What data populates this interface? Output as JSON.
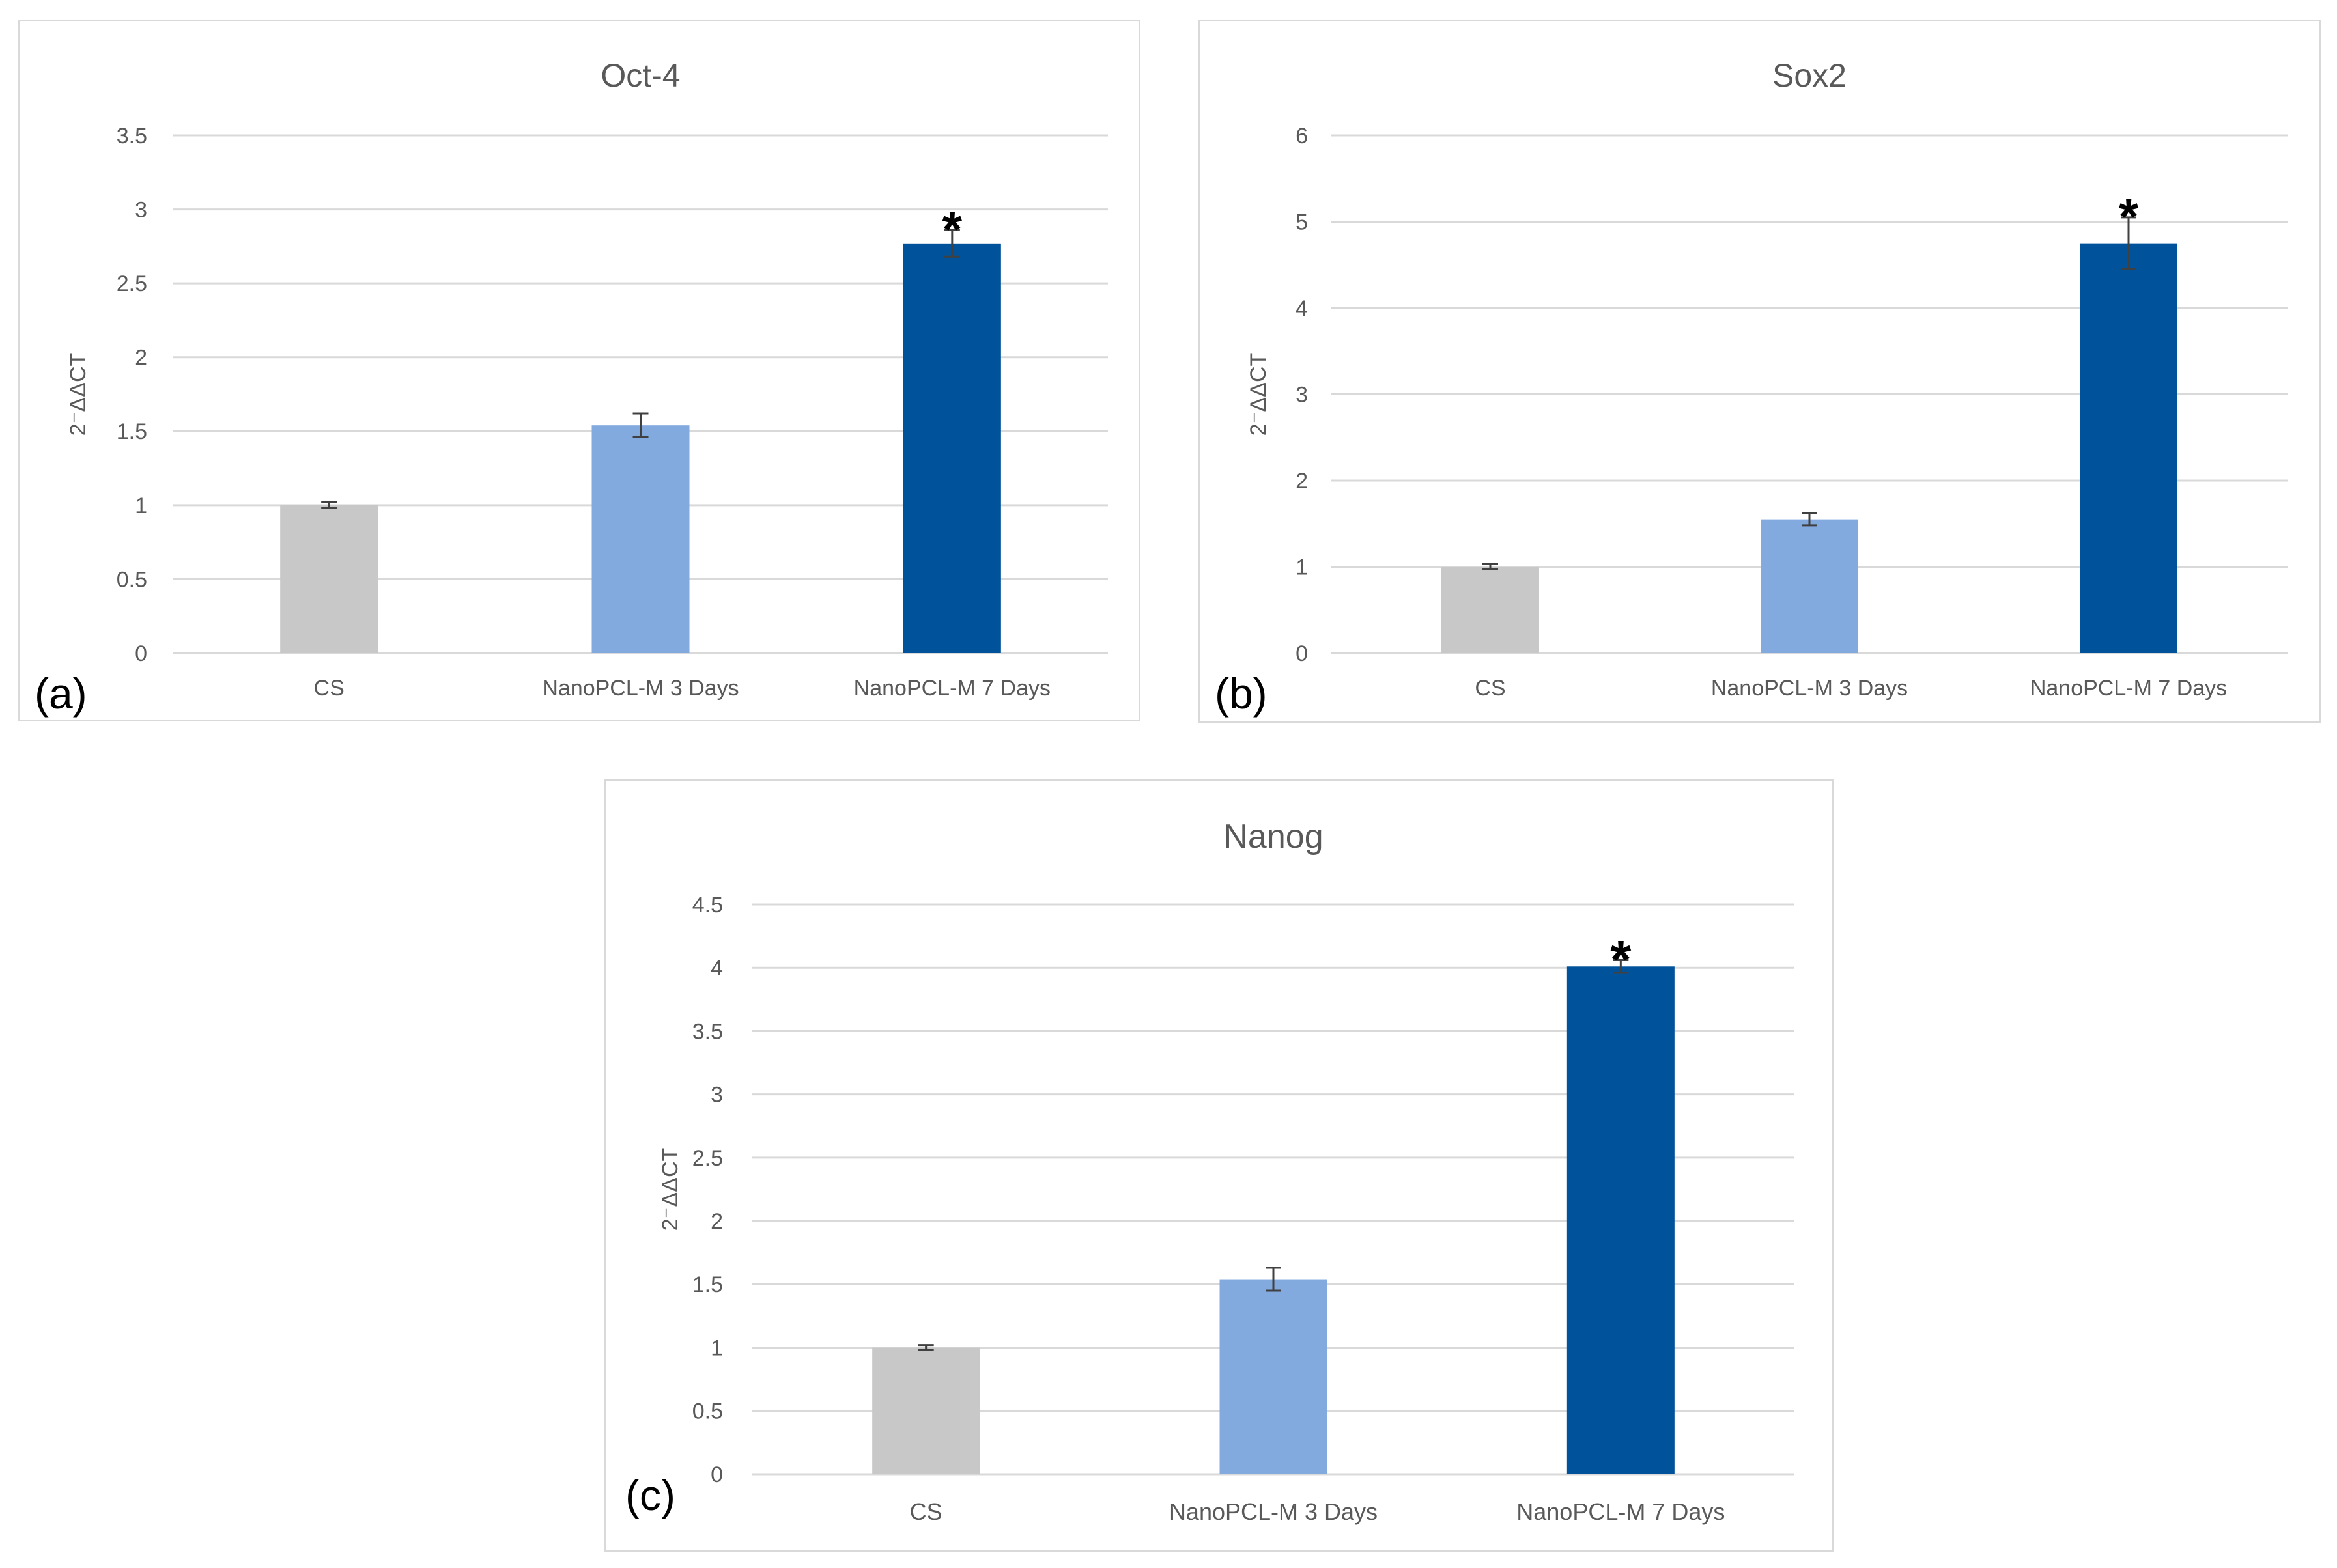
{
  "colors": {
    "cs": "#c8c8c8",
    "day3": "#82aadf",
    "day7": "#00539b",
    "grid": "#d9d9d9",
    "axis_text": "#595959",
    "title_text": "#595959",
    "error_bar": "#404040"
  },
  "chart_data": [
    {
      "panel_label": "(a)",
      "type": "bar",
      "title": "Oct-4",
      "ylabel": "2⁻ΔΔCT",
      "xlabel": "",
      "categories": [
        "CS",
        "NanoPCL-M 3 Days",
        "NanoPCL-M 7 Days"
      ],
      "values": [
        1.0,
        1.54,
        2.77
      ],
      "errors": [
        0.02,
        0.08,
        0.09
      ],
      "significance": [
        "",
        "",
        "*"
      ],
      "ylim": [
        0,
        3.5
      ],
      "yticks": [
        0,
        0.5,
        1,
        1.5,
        2,
        2.5,
        3,
        3.5
      ],
      "ytick_labels": [
        "0",
        "0.5",
        "1",
        "1.5",
        "2",
        "2.5",
        "3",
        "3.5"
      ],
      "grid": true
    },
    {
      "panel_label": "(b)",
      "type": "bar",
      "title": "Sox2",
      "ylabel": "2⁻ΔΔCT",
      "xlabel": "",
      "categories": [
        "CS",
        "NanoPCL-M 3 Days",
        "NanoPCL-M 7 Days"
      ],
      "values": [
        1.0,
        1.55,
        4.75
      ],
      "errors": [
        0.03,
        0.07,
        0.3
      ],
      "significance": [
        "",
        "",
        "*"
      ],
      "ylim": [
        0,
        6
      ],
      "yticks": [
        0,
        1,
        2,
        3,
        4,
        5,
        6
      ],
      "ytick_labels": [
        "0",
        "1",
        "2",
        "3",
        "4",
        "5",
        "6"
      ],
      "grid": true
    },
    {
      "panel_label": "(c)",
      "type": "bar",
      "title": "Nanog",
      "ylabel": "2⁻ΔΔCT",
      "xlabel": "",
      "categories": [
        "CS",
        "NanoPCL-M 3 Days",
        "NanoPCL-M 7 Days"
      ],
      "values": [
        1.0,
        1.54,
        4.01
      ],
      "errors": [
        0.02,
        0.09,
        0.05
      ],
      "significance": [
        "",
        "",
        "*"
      ],
      "ylim": [
        0,
        4.5
      ],
      "yticks": [
        0,
        0.5,
        1,
        1.5,
        2,
        2.5,
        3,
        3.5,
        4,
        4.5
      ],
      "ytick_labels": [
        "0",
        "0.5",
        "1",
        "1.5",
        "2",
        "2.5",
        "3",
        "3.5",
        "4",
        "4.5"
      ],
      "grid": true
    }
  ]
}
